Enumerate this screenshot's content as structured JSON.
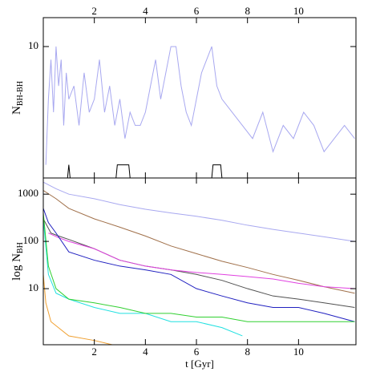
{
  "chart_data": [
    {
      "type": "line",
      "ylabel": "N",
      "ylabel_sub": "BH-BH",
      "xtick_side": "top",
      "xlim": [
        0,
        12.25
      ],
      "xticks": [
        2,
        4,
        6,
        8,
        10
      ],
      "ylim": [
        0,
        12.2
      ],
      "yticks": [
        10
      ],
      "log_y": false,
      "series": [
        {
          "color": "#a8a8f0",
          "x": [
            0.1,
            0.2,
            0.3,
            0.4,
            0.5,
            0.6,
            0.7,
            0.8,
            0.9,
            1.0,
            1.2,
            1.4,
            1.6,
            1.8,
            2.0,
            2.2,
            2.4,
            2.6,
            2.8,
            3.0,
            3.2,
            3.4,
            3.6,
            3.8,
            4.0,
            4.2,
            4.4,
            4.6,
            4.8,
            5.0,
            5.2,
            5.4,
            5.6,
            5.8,
            6.0,
            6.2,
            6.4,
            6.6,
            6.8,
            7.0,
            7.4,
            7.8,
            8.2,
            8.6,
            9.0,
            9.4,
            9.8,
            10.2,
            10.6,
            11.0,
            11.4,
            11.8,
            12.2
          ],
          "values": [
            1,
            6,
            9,
            5,
            10,
            7,
            9,
            4,
            8,
            6,
            7,
            4,
            8,
            5,
            6,
            9,
            5,
            7,
            4,
            6,
            3,
            5,
            4,
            4,
            5,
            7,
            9,
            6,
            8,
            10,
            10,
            7,
            5,
            4,
            6,
            8,
            9,
            10,
            7,
            6,
            5,
            4,
            3,
            5,
            2,
            4,
            3,
            5,
            4,
            2,
            3,
            4,
            3
          ]
        },
        {
          "color": "#000000",
          "x": [
            0,
            0.95,
            1.0,
            1.05,
            2.85,
            2.9,
            3.35,
            3.4,
            6.6,
            6.65,
            6.95,
            7.0,
            12.2
          ],
          "values": [
            0,
            0,
            1,
            0,
            0,
            1,
            1,
            0,
            0,
            1,
            1,
            0,
            0
          ]
        }
      ]
    },
    {
      "type": "line",
      "ylabel": "log N",
      "ylabel_sub": "BH",
      "xlabel": "t [Gyr]",
      "xtick_side": "bottom",
      "xlim": [
        0,
        12.25
      ],
      "xticks": [
        2,
        4,
        6,
        8,
        10
      ],
      "ylim": [
        0.65,
        2200
      ],
      "yticks": [
        10,
        100,
        1000
      ],
      "log_y": true,
      "series": [
        {
          "color": "#a8a8f0",
          "x": [
            0,
            0.5,
            1,
            2,
            3,
            4,
            5,
            6,
            7,
            8,
            9,
            10,
            11,
            12.2
          ],
          "values": [
            1800,
            1300,
            1000,
            800,
            600,
            480,
            400,
            340,
            280,
            220,
            180,
            150,
            125,
            100
          ]
        },
        {
          "color": "#a0704a",
          "x": [
            0,
            0.5,
            1,
            2,
            3,
            4,
            5,
            6,
            7,
            8,
            9,
            10,
            11,
            12.2
          ],
          "values": [
            1200,
            800,
            500,
            300,
            200,
            130,
            80,
            55,
            38,
            28,
            20,
            15,
            11,
            8
          ]
        },
        {
          "color": "#505050",
          "x": [
            0,
            0.3,
            0.6,
            1,
            2,
            3,
            4,
            5,
            6,
            7,
            8,
            9,
            10,
            11,
            12.2
          ],
          "values": [
            300,
            150,
            130,
            110,
            70,
            40,
            30,
            25,
            20,
            15,
            10,
            7,
            6,
            5,
            4
          ]
        },
        {
          "color": "#e040e0",
          "x": [
            0.2,
            0.6,
            1,
            2,
            3,
            4,
            5,
            6,
            7,
            8,
            9,
            10,
            11,
            12.2
          ],
          "values": [
            150,
            120,
            100,
            70,
            40,
            30,
            25,
            22,
            20,
            18,
            16,
            13,
            11,
            10
          ]
        },
        {
          "color": "#2020c0",
          "x": [
            0,
            0.2,
            0.5,
            1,
            2,
            3,
            4,
            5,
            6,
            7,
            8,
            9,
            10,
            11,
            12.2
          ],
          "values": [
            500,
            250,
            150,
            60,
            40,
            30,
            25,
            20,
            10,
            7,
            5,
            4,
            4,
            3,
            2
          ]
        },
        {
          "color": "#20e0e0",
          "x": [
            0,
            0.2,
            0.5,
            1,
            2,
            3,
            4,
            5,
            6,
            7,
            7.8
          ],
          "values": [
            300,
            20,
            8,
            6,
            4,
            3,
            3,
            2,
            2,
            1.5,
            1
          ]
        },
        {
          "color": "#30d030",
          "x": [
            0,
            0.2,
            0.5,
            1,
            2,
            3,
            4,
            5,
            6,
            7,
            8,
            10,
            12.2
          ],
          "values": [
            400,
            30,
            10,
            6,
            5,
            4,
            3,
            3,
            2.5,
            2.5,
            2,
            2,
            2
          ]
        },
        {
          "color": "#f0a030",
          "x": [
            0,
            0.1,
            0.3,
            1,
            2,
            2.7
          ],
          "values": [
            20,
            5,
            2,
            1,
            0.8,
            0.65
          ]
        }
      ]
    }
  ]
}
